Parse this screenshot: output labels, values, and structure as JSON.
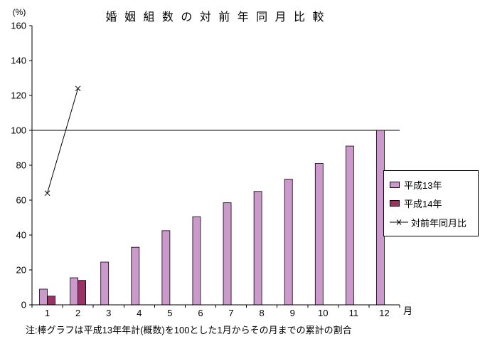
{
  "title": "婚 姻 組 数 の 対 前 年 同 月 比 較",
  "note": "注:棒グラフは平成13年年計(概数)を100とした1月からその月までの累計の割合",
  "colors": {
    "h13_bar": "#cc99cc",
    "h14_bar": "#993366",
    "ratio_line": "#000000",
    "axis": "#000000",
    "background": "#ffffff"
  },
  "chart_data": {
    "type": "bar",
    "title": "婚姻組数の対前年同月比較",
    "categories": [
      "1",
      "2",
      "3",
      "4",
      "5",
      "6",
      "7",
      "8",
      "9",
      "10",
      "11",
      "12"
    ],
    "series": [
      {
        "name": "平成13年",
        "type": "bar",
        "color": "#cc99cc",
        "values": [
          9,
          15.5,
          24.5,
          33,
          42.5,
          50.5,
          58.5,
          65,
          72,
          81,
          91,
          100
        ]
      },
      {
        "name": "平成14年",
        "type": "bar",
        "color": "#993366",
        "values": [
          5,
          14,
          null,
          null,
          null,
          null,
          null,
          null,
          null,
          null,
          null,
          null
        ]
      },
      {
        "name": "対前年同月比",
        "type": "line",
        "color": "#000000",
        "marker": "x",
        "values": [
          64,
          124,
          null,
          null,
          null,
          null,
          null,
          null,
          null,
          null,
          null,
          null
        ]
      }
    ],
    "xlabel": "月",
    "ylabel": "(%)",
    "ylim": [
      0,
      160
    ],
    "ytick_step": 20,
    "reference_line": 100,
    "grid": false,
    "legend_position": "right"
  }
}
